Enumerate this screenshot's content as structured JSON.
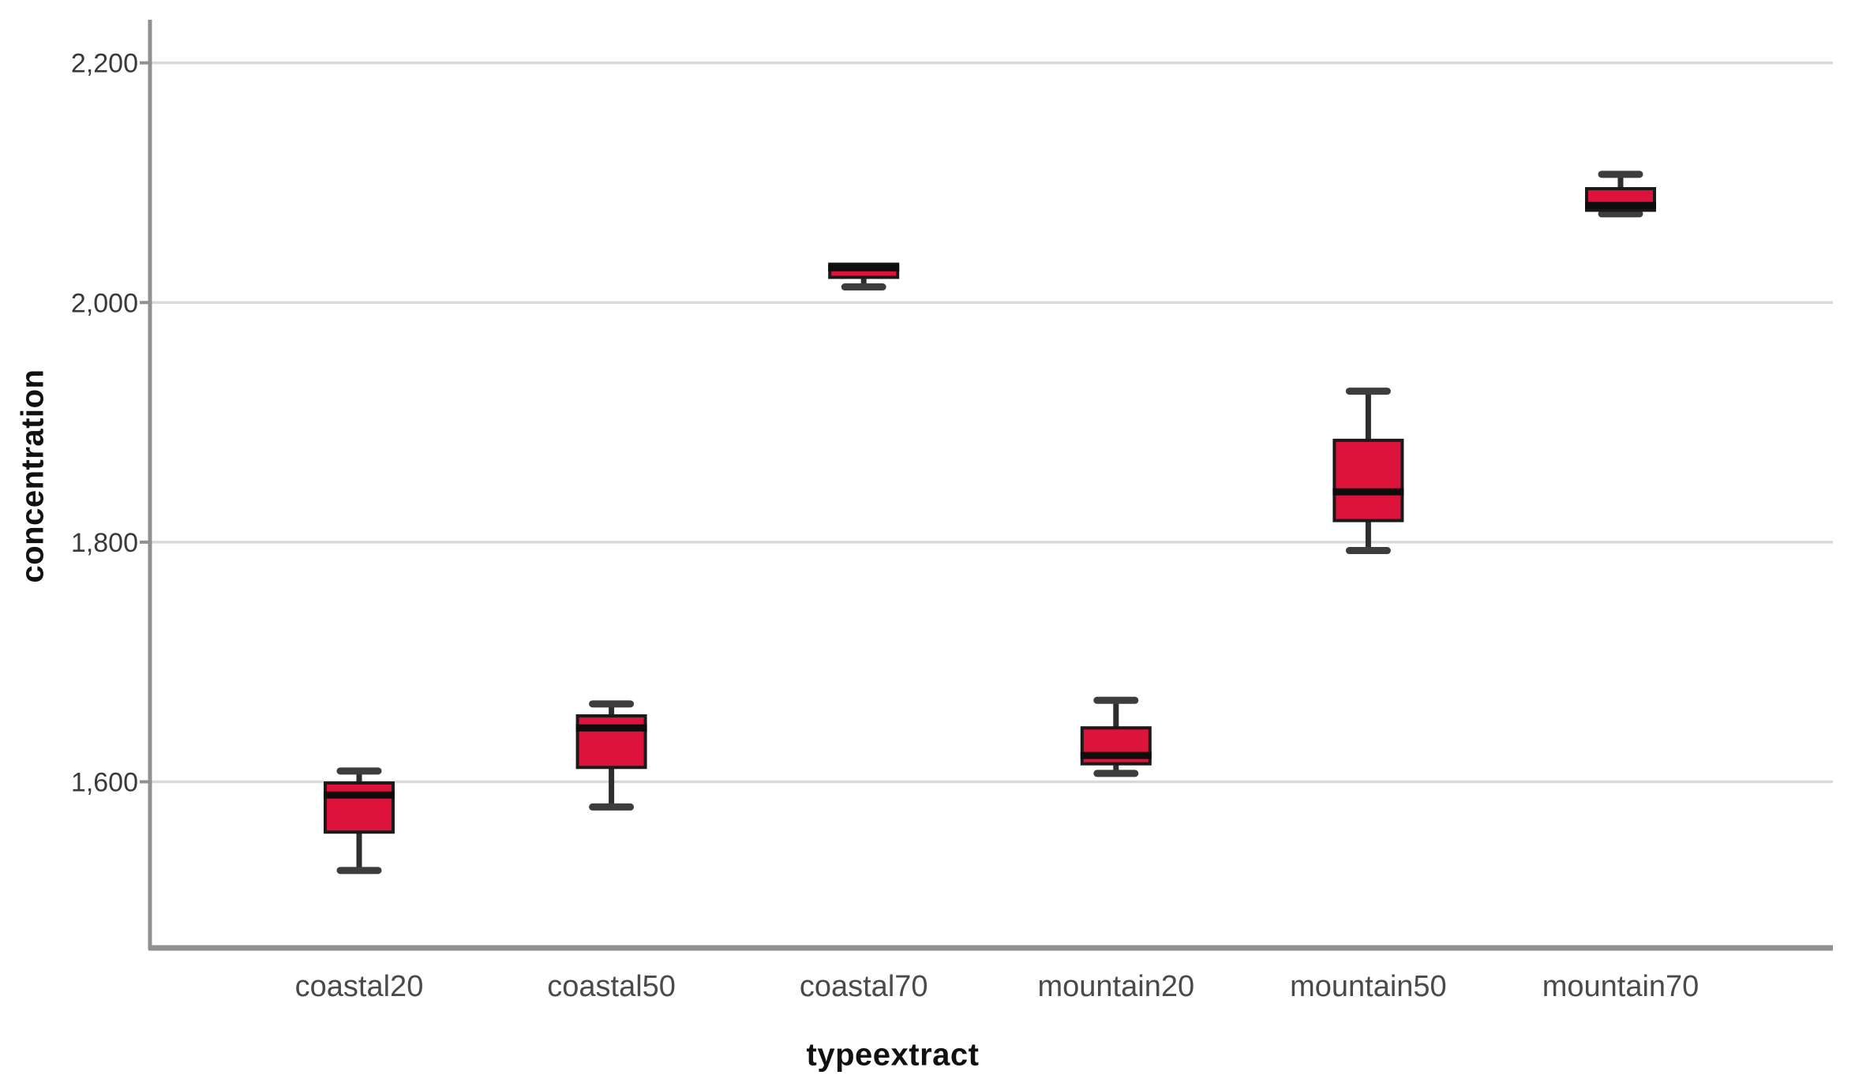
{
  "figure": {
    "description": "Boxplot of concentration grouped by typeextract"
  },
  "chart_data": {
    "type": "boxplot",
    "title": "",
    "xlabel": "typeextract",
    "ylabel": "concentration",
    "categories": [
      "coastal20",
      "coastal50",
      "coastal70",
      "mountain20",
      "mountain50",
      "mountain70"
    ],
    "boxes": [
      {
        "category": "coastal20",
        "whisker_low": 1526,
        "q1": 1558,
        "median": 1589,
        "q3": 1599,
        "whisker_high": 1609
      },
      {
        "category": "coastal50",
        "whisker_low": 1579,
        "q1": 1612,
        "median": 1645,
        "q3": 1655,
        "whisker_high": 1665
      },
      {
        "category": "coastal70",
        "whisker_low": 2013,
        "q1": 2021,
        "median": 2029,
        "q3": 2032,
        "whisker_high": null
      },
      {
        "category": "mountain20",
        "whisker_low": 1607,
        "q1": 1615,
        "median": 1622,
        "q3": 1645,
        "whisker_high": 1668
      },
      {
        "category": "mountain50",
        "whisker_low": 1793,
        "q1": 1818,
        "median": 1842,
        "q3": 1885,
        "whisker_high": 1926
      },
      {
        "category": "mountain70",
        "whisker_low": 2074,
        "q1": 2077,
        "median": 2081,
        "q3": 2095,
        "whisker_high": 2107
      }
    ],
    "yticks": [
      {
        "value": 1600,
        "label": "1,600"
      },
      {
        "value": 1800,
        "label": "1,800"
      },
      {
        "value": 2000,
        "label": "2,000"
      },
      {
        "value": 2200,
        "label": "2,200"
      }
    ],
    "ylim": [
      1462,
      2236
    ],
    "grid": "horizontal-only",
    "legend": "none",
    "colors": {
      "box_fill": "#dc143c",
      "box_border": "#1a1a1a",
      "median": "#0d0d0d",
      "whisker_stem": "#2e2e2e",
      "whisker_cap": "#3d3d3d",
      "gridline": "#d9d9d9",
      "axis": "#909090",
      "tick_label": "#3a3a3a",
      "category_label": "#4a4a4a",
      "axis_title": "#111111"
    }
  }
}
